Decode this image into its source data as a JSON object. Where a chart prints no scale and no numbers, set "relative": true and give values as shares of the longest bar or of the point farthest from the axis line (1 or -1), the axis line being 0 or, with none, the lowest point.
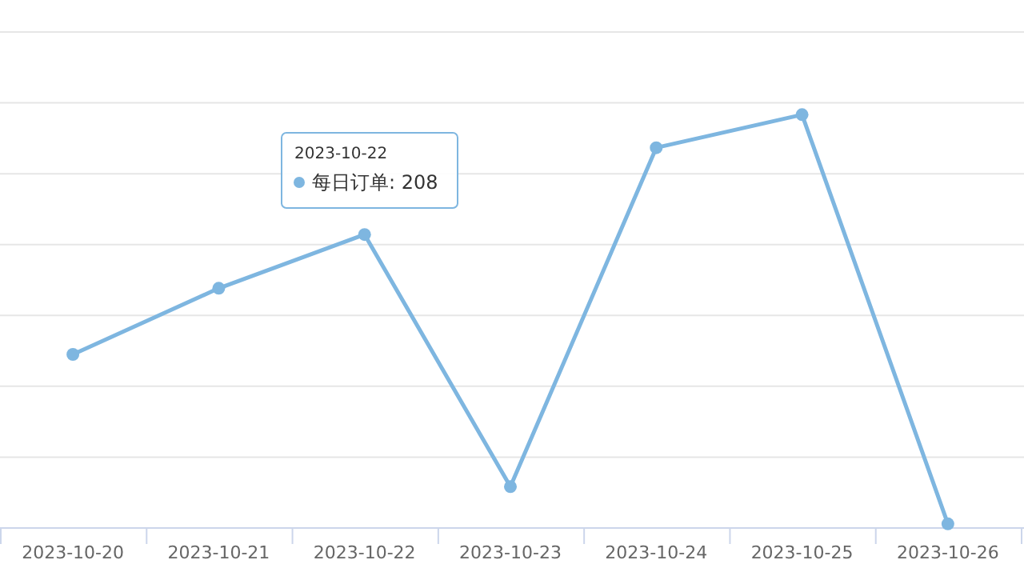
{
  "chart_data": {
    "type": "line",
    "relative": true,
    "categories": [
      "2023-10-20",
      "2023-10-21",
      "2023-10-22",
      "2023-10-23",
      "2023-10-24",
      "2023-10-25",
      "2023-10-26"
    ],
    "series": [
      {
        "color": "#7eb6e0",
        "values": [
          0.42,
          0.58,
          0.71,
          0.1,
          0.92,
          1.0,
          0.01
        ]
      }
    ],
    "annotations": [
      "2023-10-22",
      "每日订单: 208"
    ],
    "grid": "y",
    "marker": "circle",
    "line_style": "solid"
  }
}
